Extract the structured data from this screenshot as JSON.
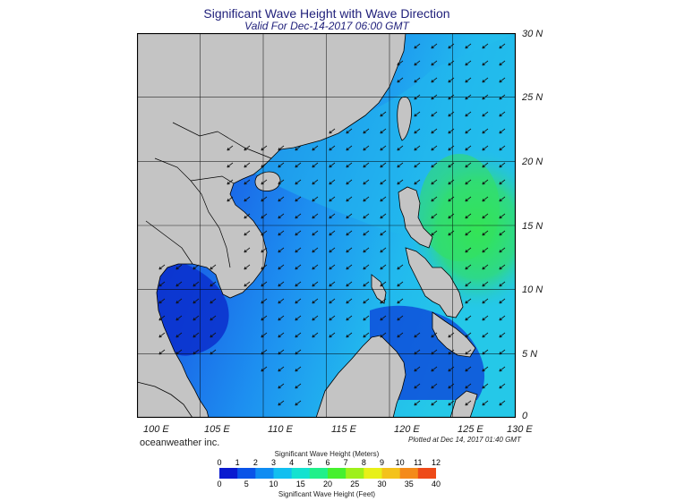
{
  "header": {
    "title": "Significant Wave Height with Wave Direction",
    "subtitle": "Valid For Dec-14-2017 06:00 GMT"
  },
  "map": {
    "lat_labels": [
      "30 N",
      "25 N",
      "20 N",
      "15 N",
      "10 N",
      "5 N",
      "0"
    ],
    "lon_labels": [
      "100 E",
      "105 E",
      "110 E",
      "115 E",
      "120 E",
      "125 E",
      "130 E"
    ],
    "land_color": "#c4c4c4",
    "sea_colors": {
      "calm": "#0a3fd8",
      "moderate": "#1a82f0",
      "elevated": "#23c7e6",
      "high": "#2fe36a"
    },
    "dominant_wave_direction": "from northeast"
  },
  "footer": {
    "credit": "oceanweather inc.",
    "plotted": "Plotted at Dec 14, 2017 01:40 GMT"
  },
  "colorbar": {
    "meters_title": "Significant Wave Height (Meters)",
    "feet_title": "Significant Wave Height (Feet)",
    "meters_ticks": [
      "0",
      "1",
      "2",
      "3",
      "4",
      "5",
      "6",
      "7",
      "8",
      "9",
      "10",
      "11",
      "12"
    ],
    "feet_ticks": [
      "0",
      "5",
      "10",
      "15",
      "20",
      "25",
      "30",
      "35",
      "40"
    ],
    "colors": [
      "#0a1bd0",
      "#0a54e8",
      "#0f8cf2",
      "#12bff0",
      "#14e2d0",
      "#21f08a",
      "#46f02e",
      "#9ef01a",
      "#e8f018",
      "#f4c21a",
      "#f48a1a",
      "#ee4a18"
    ]
  }
}
